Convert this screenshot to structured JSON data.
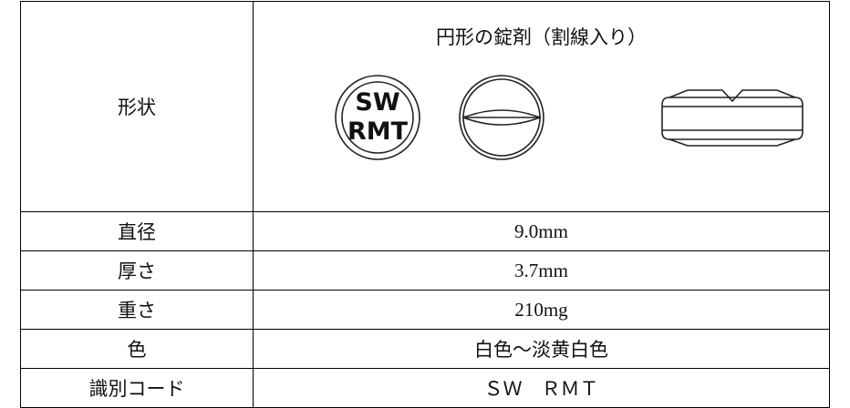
{
  "table": {
    "rows": [
      {
        "label": "形状",
        "value": "円形の錠剤（割線入り）",
        "imprint": [
          "SW",
          "RMT"
        ]
      },
      {
        "label": "直径",
        "value": "9.0mm"
      },
      {
        "label": "厚さ",
        "value": "3.7mm"
      },
      {
        "label": "重さ",
        "value": "210mg"
      },
      {
        "label": "色",
        "value": "白色～淡黄白色"
      },
      {
        "label": "識別コード",
        "value": "ＳＷ　ＲＭＴ"
      }
    ]
  }
}
